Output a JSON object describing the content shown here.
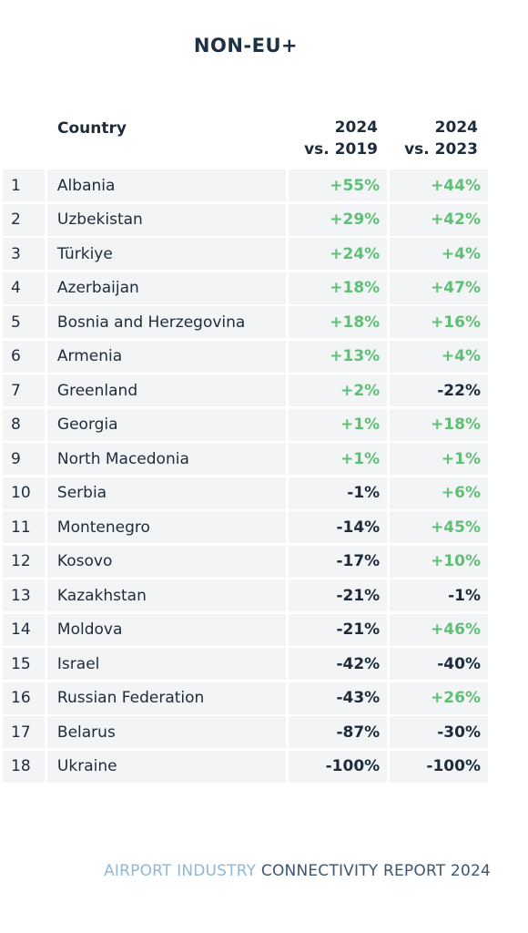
{
  "title": "NON-EU+",
  "header": {
    "country": "Country",
    "col1_line1": "2024",
    "col1_line2": "vs. 2019",
    "col2_line1": "2024",
    "col2_line2": "vs. 2023"
  },
  "colors": {
    "positive": "#5fbf76",
    "negative": "#1d2b3a",
    "row_bg": "#f3f4f6"
  },
  "rows": [
    {
      "rank": "1",
      "country": "Albania",
      "vs2019": "+55%",
      "vs2023": "+44%"
    },
    {
      "rank": "2",
      "country": "Uzbekistan",
      "vs2019": "+29%",
      "vs2023": "+42%"
    },
    {
      "rank": "3",
      "country": "Türkiye",
      "vs2019": "+24%",
      "vs2023": "+4%"
    },
    {
      "rank": "4",
      "country": "Azerbaijan",
      "vs2019": "+18%",
      "vs2023": "+47%"
    },
    {
      "rank": "5",
      "country": "Bosnia and Herzegovina",
      "vs2019": "+18%",
      "vs2023": "+16%"
    },
    {
      "rank": "6",
      "country": "Armenia",
      "vs2019": "+13%",
      "vs2023": "+4%"
    },
    {
      "rank": "7",
      "country": "Greenland",
      "vs2019": "+2%",
      "vs2023": "-22%"
    },
    {
      "rank": "8",
      "country": "Georgia",
      "vs2019": "+1%",
      "vs2023": "+18%"
    },
    {
      "rank": "9",
      "country": "North Macedonia",
      "vs2019": "+1%",
      "vs2023": "+1%"
    },
    {
      "rank": "10",
      "country": "Serbia",
      "vs2019": "-1%",
      "vs2023": "+6%"
    },
    {
      "rank": "11",
      "country": "Montenegro",
      "vs2019": "-14%",
      "vs2023": "+45%"
    },
    {
      "rank": "12",
      "country": "Kosovo",
      "vs2019": "-17%",
      "vs2023": "+10%"
    },
    {
      "rank": "13",
      "country": "Kazakhstan",
      "vs2019": "-21%",
      "vs2023": "-1%"
    },
    {
      "rank": "14",
      "country": "Moldova",
      "vs2019": "-21%",
      "vs2023": "+46%"
    },
    {
      "rank": "15",
      "country": "Israel",
      "vs2019": "-42%",
      "vs2023": "-40%"
    },
    {
      "rank": "16",
      "country": "Russian Federation",
      "vs2019": "-43%",
      "vs2023": "+26%"
    },
    {
      "rank": "17",
      "country": "Belarus",
      "vs2019": "-87%",
      "vs2023": "-30%"
    },
    {
      "rank": "18",
      "country": "Ukraine",
      "vs2019": "-100%",
      "vs2023": "-100%"
    }
  ],
  "footer": {
    "light_text": "AIRPORT INDUSTRY",
    "dark_text": "CONNECTIVITY REPORT 2024"
  }
}
